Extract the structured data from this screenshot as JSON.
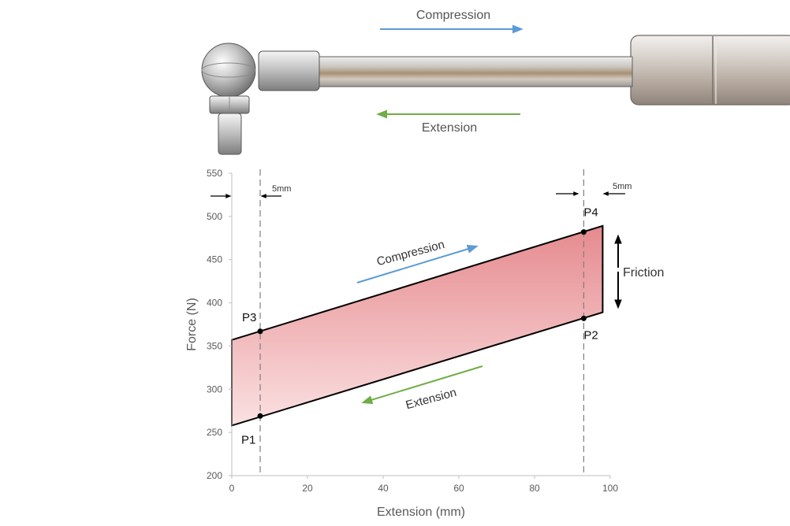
{
  "header": {
    "compression_label": "Compression",
    "extension_label": "Extension"
  },
  "annotations": {
    "offset_left": "5mm",
    "offset_right": "5mm",
    "friction": "Friction",
    "compression": "Compression",
    "extension": "Extension"
  },
  "colors": {
    "compression_arrow": "#5b9bd5",
    "extension_arrow": "#70ad47",
    "band_fill_top": "#e58a8e",
    "band_fill_bottom": "#fbe1e2",
    "outline": "#000000",
    "guide": "#7f7f7f"
  },
  "chart_data": {
    "type": "area",
    "xlabel": "Extension (mm)",
    "ylabel": "Force (N)",
    "xlim": [
      0,
      100
    ],
    "ylim": [
      200,
      550
    ],
    "x_ticks": [
      "0",
      "20",
      "40",
      "60",
      "80",
      "100"
    ],
    "y_ticks": [
      "200",
      "250",
      "300",
      "350",
      "400",
      "450",
      "500",
      "550"
    ],
    "grid": false,
    "guides_x": [
      7.5,
      93
    ],
    "band": [
      {
        "x": 0,
        "y": 357
      },
      {
        "x": 98,
        "y": 489
      },
      {
        "x": 98,
        "y": 389
      },
      {
        "x": 0,
        "y": 258
      }
    ],
    "points": [
      {
        "label": "P1",
        "x": 7.5,
        "y": 269
      },
      {
        "label": "P2",
        "x": 93,
        "y": 382
      },
      {
        "label": "P3",
        "x": 7.5,
        "y": 367
      },
      {
        "label": "P4",
        "x": 93,
        "y": 482
      }
    ]
  }
}
